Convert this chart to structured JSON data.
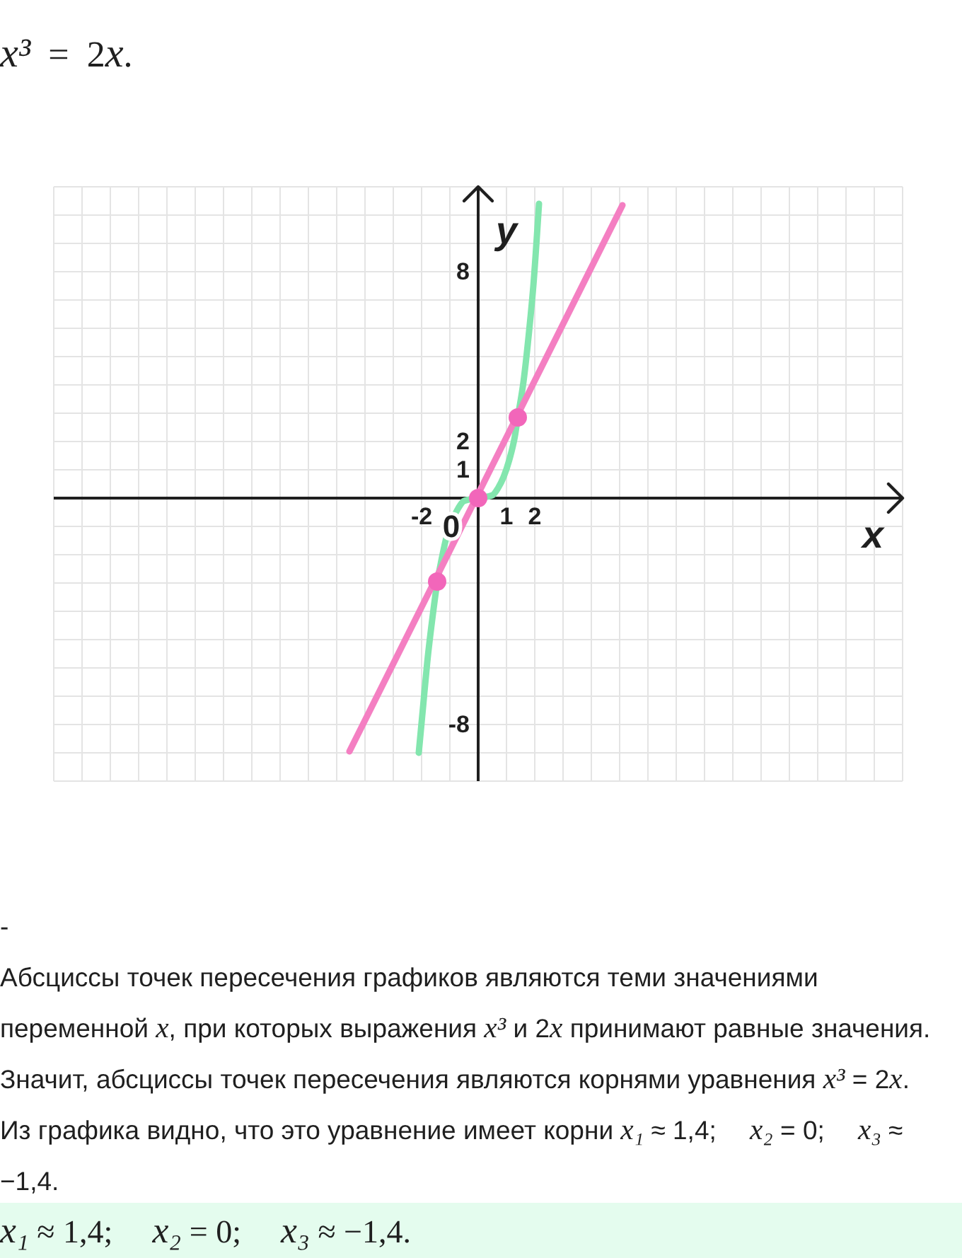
{
  "chart_data": {
    "type": "line",
    "title": "x³ = 2x.",
    "xlabel": "x",
    "ylabel": "y",
    "xlim": [
      -15,
      15
    ],
    "ylim": [
      -10,
      11
    ],
    "xticks": [
      {
        "value": -15,
        "label": null
      },
      {
        "value": -14,
        "label": null
      },
      {
        "value": -13,
        "label": null
      },
      {
        "value": -12,
        "label": null
      },
      {
        "value": -11,
        "label": null
      },
      {
        "value": -10,
        "label": null
      },
      {
        "value": -9,
        "label": null
      },
      {
        "value": -8,
        "label": null
      },
      {
        "value": -7,
        "label": null
      },
      {
        "value": -6,
        "label": null
      },
      {
        "value": -5,
        "label": null
      },
      {
        "value": -4,
        "label": null
      },
      {
        "value": -3,
        "label": null
      },
      -2,
      {
        "value": -1,
        "label": null
      },
      {
        "value": 0,
        "label": null
      },
      1,
      2,
      {
        "value": 3,
        "label": null
      },
      {
        "value": 4,
        "label": null
      },
      {
        "value": 5,
        "label": null
      },
      {
        "value": 6,
        "label": null
      },
      {
        "value": 7,
        "label": null
      },
      {
        "value": 8,
        "label": null
      },
      {
        "value": 9,
        "label": null
      },
      {
        "value": 10,
        "label": null
      },
      {
        "value": 11,
        "label": null
      },
      {
        "value": 12,
        "label": null
      },
      {
        "value": 13,
        "label": null
      },
      {
        "value": 14,
        "label": null
      },
      {
        "value": 15,
        "label": null
      }
    ],
    "yticks": [
      {
        "value": -10,
        "label": null
      },
      {
        "value": -9,
        "label": null
      },
      -8,
      {
        "value": -7,
        "label": null
      },
      {
        "value": -6,
        "label": null
      },
      {
        "value": -5,
        "label": null
      },
      {
        "value": -4,
        "label": null
      },
      {
        "value": -3,
        "label": null
      },
      {
        "value": -2,
        "label": null
      },
      {
        "value": -1,
        "label": null
      },
      {
        "value": 0,
        "label": null
      },
      1,
      2,
      {
        "value": 3,
        "label": null
      },
      {
        "value": 4,
        "label": null
      },
      {
        "value": 5,
        "label": null
      },
      {
        "value": 6,
        "label": null
      },
      {
        "value": 7,
        "label": null
      },
      8,
      {
        "value": 9,
        "label": null
      },
      {
        "value": 10,
        "label": null
      },
      {
        "value": 11,
        "label": null
      }
    ],
    "grid": true,
    "series": [
      {
        "color": "#83e6ae",
        "x": [
          -2.1,
          -1.95,
          -1.8,
          -1.6,
          -1.45,
          -1.3,
          -1.1,
          -0.9,
          -0.7,
          -0.5,
          0,
          0.5,
          0.7,
          0.9,
          1.1,
          1.3,
          1.4,
          1.6,
          1.8,
          1.95,
          2.15
        ],
        "values": [
          -9.0,
          -7.4,
          -5.8,
          -4.1,
          -3.0,
          -2.2,
          -1.3,
          -0.75,
          -0.35,
          -0.1,
          0,
          0.1,
          0.35,
          0.75,
          1.35,
          2.2,
          2.85,
          4.1,
          5.9,
          7.5,
          10.4
        ]
      },
      {
        "color": "#f47fc2",
        "x": [
          -4.55,
          5.1
        ],
        "values": [
          -8.95,
          10.35
        ]
      },
      {
        "type": "scatter",
        "color": "#f266ba",
        "marker": "circle",
        "x": [
          -1.45,
          0,
          1.4
        ],
        "values": [
          -2.95,
          0,
          2.85
        ]
      }
    ],
    "annotations": [
      {
        "text": "0",
        "x": 0,
        "y": 0
      },
      "-",
      "Абсциссы точек пересечения графиков являются теми значениями переменной x, при которых выражения x³ и 2x принимают равные значения.",
      "Значит, абсциссы точек пересечения являются корнями уравнения x³ = 2x.",
      "Из графика видно, что это уравнение имеет корни x₁ ≈ 1,4;  x₂ = 0;  x₃ ≈ −1,4.",
      "x₁ ≈ 1,4;  x₂ = 0;  x₃ ≈ −1,4."
    ]
  }
}
